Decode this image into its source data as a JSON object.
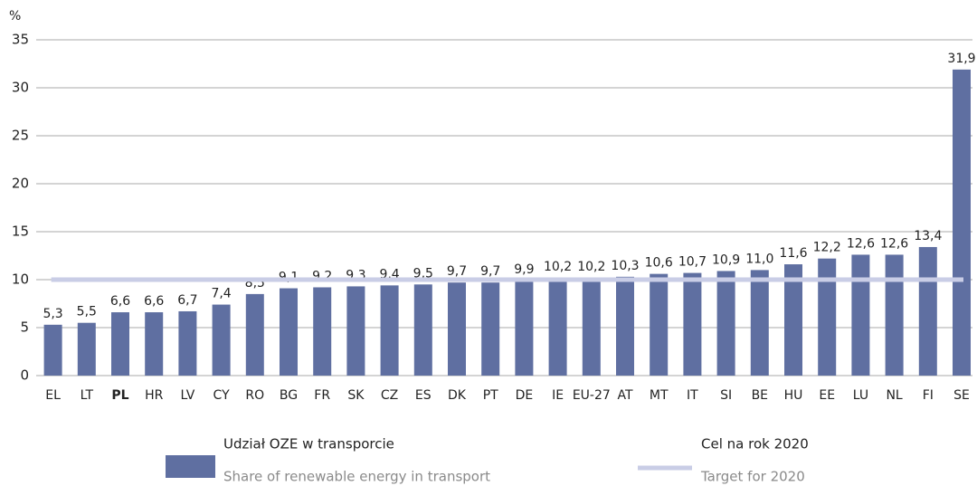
{
  "chart_data": {
    "type": "bar",
    "y_label": "%",
    "categories": [
      "EL",
      "LT",
      "PL",
      "HR",
      "LV",
      "CY",
      "RO",
      "BG",
      "FR",
      "SK",
      "CZ",
      "ES",
      "DK",
      "PT",
      "DE",
      "IE",
      "EU-27",
      "AT",
      "MT",
      "IT",
      "SI",
      "BE",
      "HU",
      "EE",
      "LU",
      "NL",
      "FI",
      "SE"
    ],
    "bold_categories": [
      2
    ],
    "series": [
      {
        "name": "Udział OZE w transporcie",
        "name_en": "Share of renewable energy in transport",
        "color": "#5f6fa1",
        "values": [
          5.3,
          5.5,
          6.6,
          6.6,
          6.7,
          7.4,
          8.5,
          9.1,
          9.2,
          9.3,
          9.4,
          9.5,
          9.7,
          9.7,
          9.9,
          10.2,
          10.2,
          10.3,
          10.6,
          10.7,
          10.9,
          11.0,
          11.6,
          12.2,
          12.6,
          12.6,
          13.4,
          31.9
        ],
        "value_labels": [
          "5,3",
          "5,5",
          "6,6",
          "6,6",
          "6,7",
          "7,4",
          "8,5",
          "9,1",
          "9,2",
          "9,3",
          "9,4",
          "9,5",
          "9,7",
          "9,7",
          "9,9",
          "10,2",
          "10,2",
          "10,3",
          "10,6",
          "10,7",
          "10,9",
          "11,0",
          "11,6",
          "12,2",
          "12,6",
          "12,6",
          "13,4",
          "31,9"
        ]
      }
    ],
    "target": {
      "name": "Cel na rok 2020",
      "name_en": "Target for 2020",
      "value": 10,
      "color": "#c9cde6"
    },
    "ylim": [
      0,
      35
    ],
    "yticks": [
      0,
      5,
      10,
      15,
      20,
      25,
      30,
      35
    ],
    "grid": true
  }
}
